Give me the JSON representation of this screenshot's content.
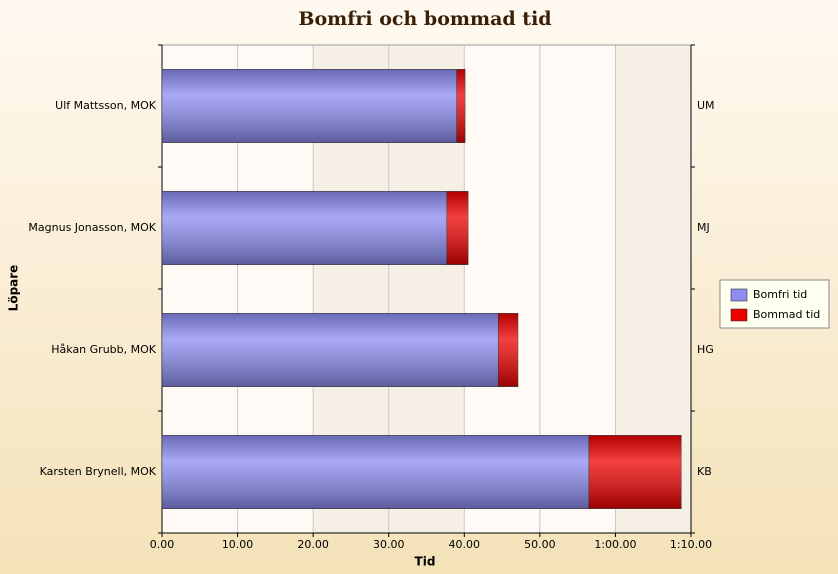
{
  "chart_data": {
    "type": "stacked_bar_horizontal",
    "title": "Bomfri och bommad tid",
    "x_label": "Tid",
    "y_label": "Löpare",
    "categories": [
      "Ulf Mattsson, MOK",
      "Magnus Jonasson, MOK",
      "Håkan Grubb, MOK",
      "Karsten Brynell, MOK"
    ],
    "right_labels": [
      "UM",
      "MJ",
      "HG",
      "KB"
    ],
    "series": [
      {
        "name": "Bomfri tid",
        "color": "#8c8cf2",
        "values": [
          39.0,
          37.7,
          44.5,
          56.5
        ]
      },
      {
        "name": "Bommad tid",
        "color": "#ee0000",
        "values": [
          1.1,
          2.8,
          2.6,
          12.2
        ]
      }
    ],
    "xlim": [
      0,
      70
    ],
    "xticks": [
      {
        "value": 0,
        "label": "0.00"
      },
      {
        "value": 10,
        "label": "10.00"
      },
      {
        "value": 20,
        "label": "20.00"
      },
      {
        "value": 30,
        "label": "30.00"
      },
      {
        "value": 40,
        "label": "40.00"
      },
      {
        "value": 50,
        "label": "50.00"
      },
      {
        "value": 60,
        "label": "1:00.00"
      },
      {
        "value": 70,
        "label": "1:10.00"
      }
    ],
    "grid": true,
    "legend": "right"
  }
}
